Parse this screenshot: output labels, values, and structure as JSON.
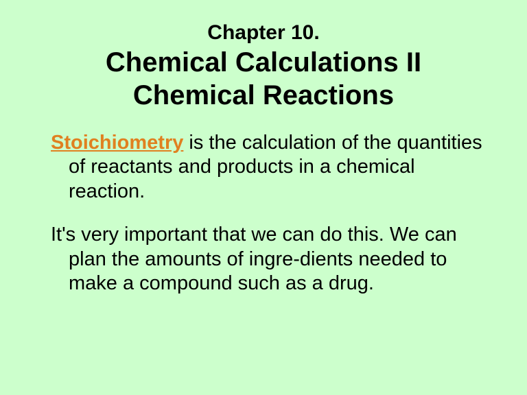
{
  "colors": {
    "background": "#ccffcc",
    "text": "#000000",
    "key_term": "#e08020"
  },
  "typography": {
    "font_family": "Arial",
    "chapter_fontsize": 30,
    "title_fontsize": 40,
    "body_fontsize": 29
  },
  "title": {
    "chapter": "Chapter 10.",
    "line1": "Chemical Calculations II",
    "line2": "Chemical Reactions"
  },
  "body": {
    "p1_term": "Stoichiometry",
    "p1_rest": " is the calculation of the quantities of reactants and products in a chemical reaction.",
    "p2": "It's very important that we can do this. We can plan the amounts of ingre-dients needed to make a compound such as a drug."
  }
}
